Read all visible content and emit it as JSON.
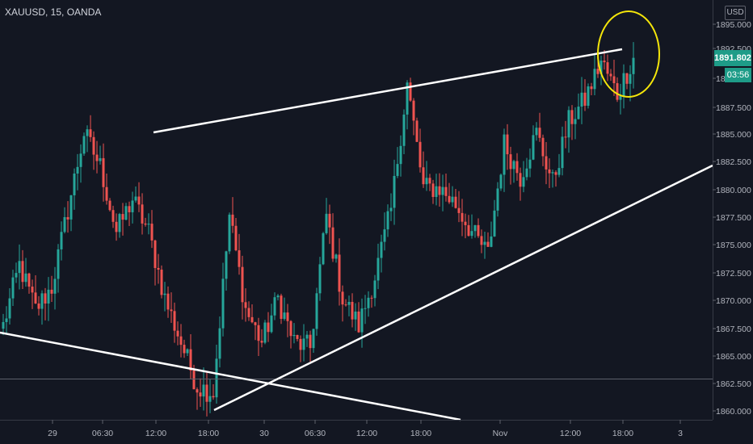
{
  "header": {
    "symbol_title": "XAUUSD, 15, OANDA",
    "currency": "USD"
  },
  "price_scale": {
    "last_price": "1891.802",
    "countdown": "03:56",
    "ticks": [
      "1895.000",
      "1892.500",
      "1890.000",
      "1887.500",
      "1885.000",
      "1882.500",
      "1880.000",
      "1877.500",
      "1875.000",
      "1872.500",
      "1870.000",
      "1867.500",
      "1865.000",
      "1862.500",
      "1860.000"
    ]
  },
  "time_scale": {
    "ticks": [
      "29",
      "06:30",
      "12:00",
      "18:00",
      "30",
      "06:30",
      "12:00",
      "18:00",
      "Nov",
      "12:00",
      "18:00",
      "3"
    ]
  },
  "colors": {
    "background": "#131722",
    "up": "#26a69a",
    "down": "#ef5350",
    "trendline": "#ffffff",
    "highlight_circle": "#ffeb3b",
    "last_price": "#1e9c88"
  },
  "chart_data": {
    "type": "candlestick",
    "symbol": "XAUUSD",
    "interval": "15",
    "source": "OANDA",
    "ylim": [
      1859.2,
      1896.9
    ],
    "ylabel": "",
    "xlabel": "",
    "grid": false,
    "last_price": 1891.802,
    "horizontal_line": 1862.9,
    "anchors": [
      1867.5,
      1873,
      1869,
      1871,
      1878,
      1885,
      1882,
      1876,
      1879,
      1876,
      1870,
      1866,
      1862,
      1861.5,
      1877.5,
      1869,
      1866,
      1870,
      1866,
      1865.5,
      1877.5,
      1870,
      1867.5,
      1872,
      1878,
      1889.5,
      1880,
      1880,
      1878.5,
      1876,
      1874,
      1884,
      1881,
      1885,
      1880.5,
      1886,
      1888,
      1891.5,
      1888.5,
      1891.8
    ],
    "series_note": "approximate 15-minute candles, read off the price axis",
    "trendlines": [
      {
        "from": {
          "x": "29 12:00",
          "y": 1885.1
        },
        "to": {
          "x": "2 18:00",
          "y": 1892.8
        }
      },
      {
        "from": {
          "x": "29 18:00",
          "y": 1860.1
        },
        "to": {
          "x": "3",
          "y": 1882.0
        }
      },
      {
        "from": {
          "x": "28",
          "y": 1866.9
        },
        "to": {
          "x": "Nov 01:00",
          "y": 1859.3
        }
      }
    ],
    "annotations": [
      {
        "type": "ellipse",
        "label": "",
        "near": "latest high"
      }
    ]
  }
}
